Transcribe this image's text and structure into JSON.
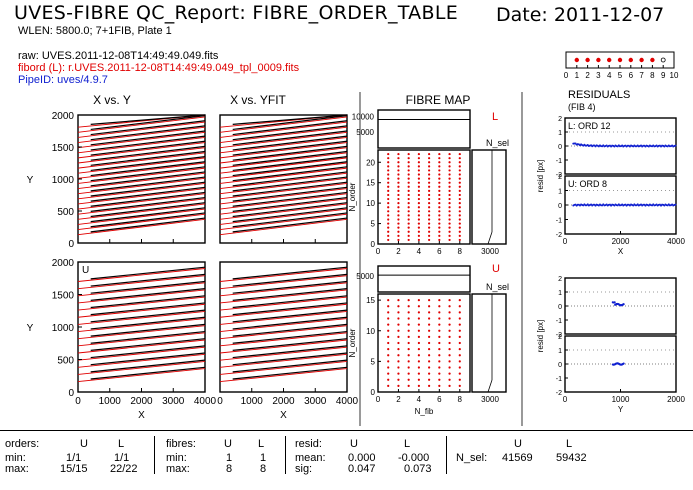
{
  "header": {
    "title": "UVES-FIBRE QC_Report: FIBRE_ORDER_TABLE",
    "date": "Date: 2011-12-07",
    "wlen": "WLEN: 5800.0; 7+1FIB, Plate 1",
    "raw": "raw: UVES.2011-12-08T14:49:49.049.fits",
    "fibord": "fibord (L): r.UVES.2011-12-08T14:49:49.049_tpl_0009.fits",
    "pipeid": "PipeID: uves/4.9.7"
  },
  "fibre_indicator": {
    "ticks": [
      "0",
      "1",
      "2",
      "3",
      "4",
      "5",
      "6",
      "7",
      "8",
      "9",
      "10"
    ],
    "filled": [
      1,
      2,
      3,
      4,
      5,
      6,
      7,
      8
    ],
    "open": [
      9
    ]
  },
  "colors": {
    "red": "#e00000",
    "blue": "#1020d0",
    "black": "#000000"
  },
  "chart_data": [
    {
      "type": "line",
      "title": "X vs. Y",
      "panels": [
        {
          "label": "",
          "xlim": [
            0,
            4000
          ],
          "ylim": [
            0,
            2000
          ],
          "xticks": [
            "0",
            "1000",
            "2000",
            "3000",
            "4000"
          ],
          "yticks": [
            "0",
            "500",
            "1000",
            "1500",
            "2000"
          ],
          "ylabel": "Y",
          "xlabel": "",
          "n_orders": 22,
          "y_start": 150,
          "y_step": 80,
          "slope": 0.06
        },
        {
          "label": "U",
          "xlim": [
            0,
            4000
          ],
          "ylim": [
            0,
            2000
          ],
          "xticks": [
            "0",
            "1000",
            "2000",
            "3000",
            "4000"
          ],
          "yticks": [
            "0",
            "500",
            "1000",
            "1500",
            "2000"
          ],
          "ylabel": "Y",
          "xlabel": "X",
          "n_orders": 15,
          "y_start": 180,
          "y_step": 110,
          "slope": 0.05
        }
      ]
    },
    {
      "type": "line",
      "title": "X vs. YFIT",
      "panels": [
        {
          "label": "",
          "xlim": [
            0,
            4000
          ],
          "ylim": [
            0,
            2000
          ],
          "xticks": [
            "0",
            "1000",
            "2000",
            "3000",
            "4000"
          ],
          "xlabel": "",
          "n_orders": 22,
          "y_start": 150,
          "y_step": 80,
          "slope": 0.06
        },
        {
          "label": "",
          "xlim": [
            0,
            4000
          ],
          "ylim": [
            0,
            2000
          ],
          "xticks": [
            "0",
            "1000",
            "2000",
            "3000",
            "4000"
          ],
          "xlabel": "X",
          "n_orders": 15,
          "y_start": 180,
          "y_step": 110,
          "slope": 0.05
        }
      ]
    },
    {
      "type": "scatter",
      "title": "FIBRE MAP",
      "blocks": [
        {
          "label": "L",
          "nsel_label": "N_sel",
          "top_yticks": [
            "5000",
            "10000"
          ],
          "top_ylim": [
            0,
            12000
          ],
          "top_value": 9000,
          "ylabel": "N_order",
          "ylim": [
            0,
            23
          ],
          "yticks": [
            "0",
            "5",
            "10",
            "15",
            "20"
          ],
          "xlim": [
            0,
            9
          ],
          "xticks": [
            "0",
            "2",
            "4",
            "6",
            "8"
          ],
          "fibres": [
            1,
            2,
            3,
            4,
            5,
            6,
            7,
            8
          ],
          "orders": 22,
          "right_xticks": [
            "3000"
          ],
          "xlabel": ""
        },
        {
          "label": "U",
          "nsel_label": "N_sel",
          "top_yticks": [
            "5000"
          ],
          "top_ylim": [
            0,
            8000
          ],
          "top_value": 5200,
          "ylabel": "N_order",
          "ylim": [
            0,
            16
          ],
          "yticks": [
            "0",
            "5",
            "10",
            "15"
          ],
          "xlim": [
            0,
            9
          ],
          "xticks": [
            "0",
            "2",
            "4",
            "6",
            "8"
          ],
          "fibres": [
            1,
            2,
            3,
            4,
            5,
            6,
            7,
            8
          ],
          "orders": 15,
          "right_xticks": [
            "3000"
          ],
          "xlabel": "N_fib"
        }
      ]
    },
    {
      "type": "scatter",
      "title": "RESIDUALS",
      "subtitle": "(FIB 4)",
      "panels": [
        {
          "label": "L: ORD 12",
          "xlim": [
            0,
            4000
          ],
          "ylim": [
            -2,
            2
          ],
          "yticks": [
            "-2",
            "-1",
            "0",
            "1",
            "2"
          ],
          "ylabel": "resid [px]"
        },
        {
          "label": "U: ORD 8",
          "xlim": [
            0,
            4000
          ],
          "ylim": [
            -2,
            2
          ],
          "yticks": [
            "-2",
            "-1",
            "0",
            "1",
            "2"
          ],
          "xticks": [
            "0",
            "2000",
            "4000"
          ],
          "xlabel": "X"
        },
        {
          "label": "",
          "xlim": [
            0,
            2000
          ],
          "ylim": [
            -2,
            2
          ],
          "yticks": [
            "-2",
            "-1",
            "0",
            "1",
            "2"
          ],
          "ylabel": "resid [px]"
        },
        {
          "label": "",
          "xlim": [
            0,
            2000
          ],
          "ylim": [
            -2,
            2
          ],
          "yticks": [
            "-2",
            "-1",
            "0",
            "1",
            "2"
          ],
          "xticks": [
            "0",
            "1000",
            "2000"
          ],
          "xlabel": "Y"
        }
      ]
    }
  ],
  "summary": {
    "orders": {
      "label": "orders:",
      "u": "U",
      "l": "L",
      "min_label": "min:",
      "max_label": "max:",
      "min_u": "1/1",
      "min_l": "1/1",
      "max_u": "15/15",
      "max_l": "22/22"
    },
    "fibres": {
      "label": "fibres:",
      "u": "U",
      "l": "L",
      "min_label": "min:",
      "max_label": "max:",
      "min_u": "1",
      "min_l": "1",
      "max_u": "8",
      "max_l": "8"
    },
    "resid": {
      "label": "resid:",
      "u": "U",
      "l": "L",
      "mean_label": "mean:",
      "sig_label": "sig:",
      "mean_u": "0.000",
      "mean_l": "-0.000",
      "sig_u": "0.047",
      "sig_l": "0.073"
    },
    "nsel": {
      "label": "N_sel:",
      "u": "U",
      "l": "L",
      "u_val": "41569",
      "l_val": "59432"
    }
  }
}
